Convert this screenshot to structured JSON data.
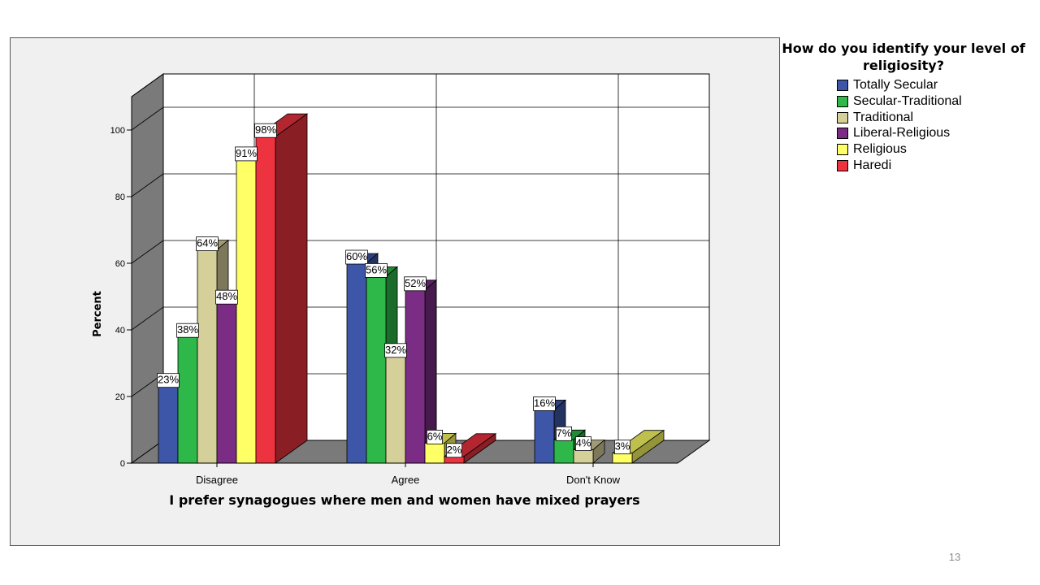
{
  "chart_data": {
    "type": "bar",
    "title": "",
    "xlabel": "I prefer synagogues where men and women have mixed prayers",
    "ylabel": "Percent",
    "ylim": [
      0,
      110
    ],
    "yticks": [
      0,
      20,
      40,
      60,
      80,
      100
    ],
    "grid": true,
    "legend_position": "right",
    "legend_title": "How do you identify your level of religiosity?",
    "categories": [
      "Disagree",
      "Agree",
      "Don't Know"
    ],
    "series": [
      {
        "name": "Totally Secular",
        "color": "#3d56a8",
        "values": [
          23,
          60,
          16
        ],
        "labels": [
          "23%",
          "60%",
          "16%"
        ]
      },
      {
        "name": "Secular-Traditional",
        "color": "#2eb84a",
        "values": [
          38,
          56,
          7
        ],
        "labels": [
          "38%",
          "56%",
          "7%"
        ]
      },
      {
        "name": "Traditional",
        "color": "#d5cf9a",
        "values": [
          64,
          32,
          4
        ],
        "labels": [
          "64%",
          "32%",
          "4%"
        ]
      },
      {
        "name": "Liberal-Religious",
        "color": "#7b2d85",
        "values": [
          48,
          52,
          null
        ],
        "labels": [
          "48%",
          "52%",
          ""
        ]
      },
      {
        "name": "Religious",
        "color": "#ffff66",
        "values": [
          91,
          6,
          3
        ],
        "labels": [
          "91%",
          "6%",
          "3%"
        ]
      },
      {
        "name": "Haredi",
        "color": "#ee3340",
        "values": [
          98,
          2,
          null
        ],
        "labels": [
          "98%",
          "2%",
          ""
        ]
      }
    ]
  },
  "page_number": "13"
}
